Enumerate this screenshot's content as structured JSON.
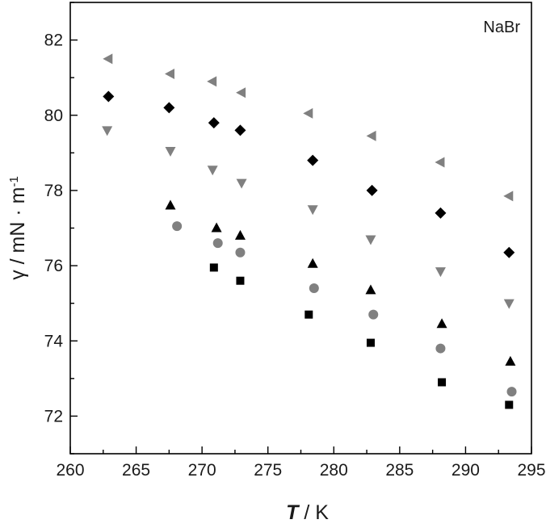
{
  "chart_data": {
    "type": "scatter",
    "annotation": "NaBr",
    "xlabel": {
      "symbol": "T",
      "unit": " / K"
    },
    "ylabel": {
      "symbol": "γ",
      "unit": " / mN · m",
      "exp": "-1"
    },
    "xlim": [
      260,
      295
    ],
    "ylim": [
      71,
      83
    ],
    "xticks": [
      260,
      265,
      270,
      275,
      280,
      285,
      290,
      295
    ],
    "yticks": [
      72,
      74,
      76,
      78,
      80,
      82
    ],
    "grid": false,
    "series": [
      {
        "marker": "triangle-left",
        "color": "#808080",
        "x": [
          262.9,
          267.6,
          270.8,
          273.0,
          278.1,
          282.9,
          288.1,
          293.3
        ],
        "y": [
          81.5,
          81.1,
          80.9,
          80.6,
          80.05,
          79.45,
          78.75,
          77.85
        ]
      },
      {
        "marker": "diamond",
        "color": "#000000",
        "x": [
          262.9,
          267.5,
          270.9,
          272.9,
          278.4,
          282.9,
          288.1,
          293.3
        ],
        "y": [
          80.5,
          80.2,
          79.8,
          79.6,
          78.8,
          78.0,
          77.4,
          76.35
        ]
      },
      {
        "marker": "triangle-down",
        "color": "#808080",
        "x": [
          262.8,
          267.6,
          270.8,
          273.0,
          278.4,
          282.8,
          288.1,
          293.3
        ],
        "y": [
          79.6,
          79.05,
          78.55,
          78.2,
          77.5,
          76.7,
          75.85,
          75.0
        ]
      },
      {
        "marker": "triangle-up",
        "color": "#000000",
        "x": [
          267.6,
          271.1,
          272.9,
          278.4,
          282.8,
          288.2,
          293.4
        ],
        "y": [
          77.6,
          77.0,
          76.8,
          76.05,
          75.35,
          74.45,
          73.45
        ]
      },
      {
        "marker": "circle",
        "color": "#808080",
        "x": [
          268.1,
          271.2,
          272.9,
          278.5,
          283.0,
          288.1,
          293.5
        ],
        "y": [
          77.05,
          76.6,
          76.35,
          75.4,
          74.7,
          73.8,
          72.65
        ]
      },
      {
        "marker": "square",
        "color": "#000000",
        "x": [
          270.9,
          272.9,
          278.1,
          282.8,
          288.2,
          293.3
        ],
        "y": [
          75.95,
          75.6,
          74.7,
          73.95,
          72.9,
          72.3
        ]
      }
    ]
  }
}
